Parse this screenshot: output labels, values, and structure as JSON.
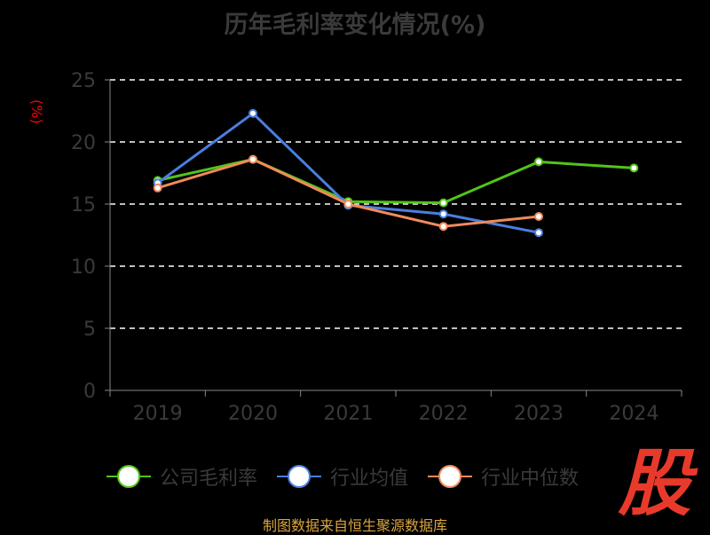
{
  "title": "历年毛利率变化情况(%)",
  "y_unit": "(%)",
  "source": "制图数据来自恒生聚源数据库",
  "logo_text": "股",
  "colors": {
    "background": "#000000",
    "axis": "#888888",
    "grid": "#ffffff",
    "tick_text": "#3a3a3a",
    "unit": "#ff0000",
    "source": "#d9a441",
    "logo": "#e83a2a"
  },
  "chart_data": {
    "type": "line",
    "title": "历年毛利率变化情况(%)",
    "ylabel": "(%)",
    "xlabel": "",
    "categories": [
      "2019",
      "2020",
      "2021",
      "2022",
      "2023",
      "2024"
    ],
    "ylim": [
      0,
      25
    ],
    "yticks": [
      0,
      5,
      10,
      15,
      20,
      25
    ],
    "grid": true,
    "legend_position": "bottom",
    "series": [
      {
        "name": "公司毛利率",
        "color": "#52c41a",
        "values": [
          16.9,
          18.6,
          15.2,
          15.1,
          18.4,
          17.9
        ]
      },
      {
        "name": "行业均值",
        "color": "#4a7fe0",
        "values": [
          16.7,
          22.3,
          14.9,
          14.2,
          12.7,
          null
        ]
      },
      {
        "name": "行业中位数",
        "color": "#f08a5a",
        "values": [
          16.3,
          18.6,
          15.0,
          13.2,
          14.0,
          null
        ]
      }
    ]
  }
}
